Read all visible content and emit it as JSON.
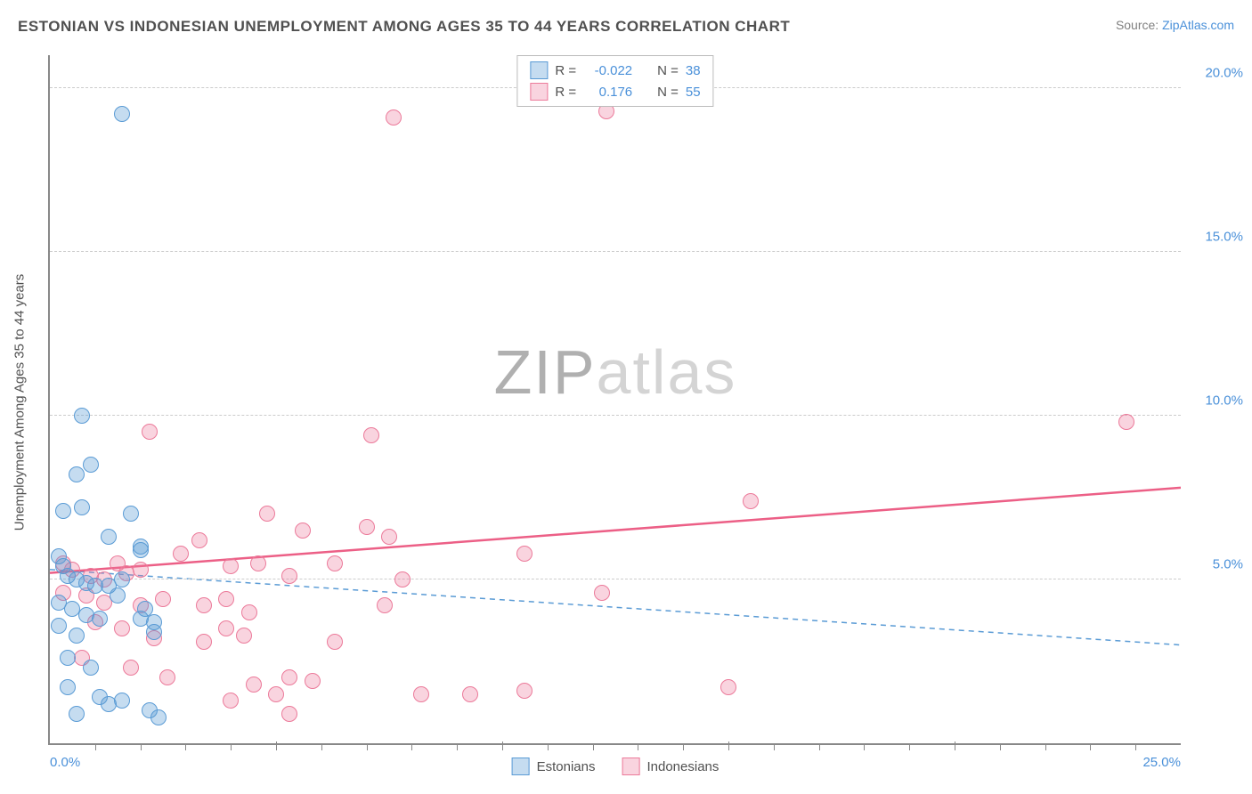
{
  "title": "ESTONIAN VS INDONESIAN UNEMPLOYMENT AMONG AGES 35 TO 44 YEARS CORRELATION CHART",
  "source_label": "Source: ",
  "source_name": "ZipAtlas.com",
  "ylabel": "Unemployment Among Ages 35 to 44 years",
  "watermark_prefix": "ZIP",
  "watermark_suffix": "atlas",
  "watermark_prefix_color": "#b0b0b0",
  "watermark_suffix_color": "#d4d4d4",
  "colors": {
    "blue_border": "#5a9bd5",
    "blue_fill": "rgba(90,155,213,0.35)",
    "pink_border": "#ec7a9a",
    "pink_fill": "rgba(236,122,154,0.32)",
    "ytick_color": "#4a90d9",
    "xtick_left_color": "#4a90d9",
    "xtick_right_color": "#4a90d9",
    "trend_blue": "#5a9bd5",
    "trend_pink": "#ec5f86",
    "legend_text": "#505050",
    "legend_value": "#4a90d9"
  },
  "xlim": [
    0,
    25
  ],
  "ylim": [
    0,
    21
  ],
  "yticks": [
    {
      "v": 5,
      "label": "5.0%"
    },
    {
      "v": 10,
      "label": "10.0%"
    },
    {
      "v": 15,
      "label": "15.0%"
    },
    {
      "v": 20,
      "label": "20.0%"
    }
  ],
  "xticks_major": [
    5,
    10,
    15,
    20
  ],
  "xticks_minor": [
    1,
    2,
    3,
    4,
    6,
    7,
    8,
    9,
    11,
    12,
    13,
    14,
    16,
    17,
    18,
    19,
    21,
    22,
    23,
    24
  ],
  "xticks_labeled": [
    {
      "v": 0,
      "label": "0.0%",
      "align": "left"
    },
    {
      "v": 25,
      "label": "25.0%",
      "align": "right"
    }
  ],
  "legend_top": [
    {
      "series": "blue",
      "r_label": "R =",
      "r_val": "-0.022",
      "n_label": "N =",
      "n_val": "38"
    },
    {
      "series": "pink",
      "r_label": "R =",
      "r_val": "0.176",
      "n_label": "N =",
      "n_val": "55"
    }
  ],
  "legend_bottom": [
    {
      "series": "blue",
      "label": "Estonians"
    },
    {
      "series": "pink",
      "label": "Indonesians"
    }
  ],
  "trend_lines": {
    "blue": {
      "x1": 0,
      "y1": 5.3,
      "x2": 25,
      "y2": 3.0,
      "dashed": true,
      "width": 1.5
    },
    "pink": {
      "x1": 0,
      "y1": 5.2,
      "x2": 25,
      "y2": 7.8,
      "dashed": false,
      "width": 2.5
    }
  },
  "marker_radius": 9,
  "series": {
    "blue": [
      [
        1.6,
        19.2
      ],
      [
        0.7,
        10.0
      ],
      [
        0.9,
        8.5
      ],
      [
        0.6,
        8.2
      ],
      [
        0.3,
        7.1
      ],
      [
        0.7,
        7.2
      ],
      [
        1.8,
        7.0
      ],
      [
        2.0,
        5.9
      ],
      [
        1.3,
        6.3
      ],
      [
        2.0,
        6.0
      ],
      [
        0.2,
        5.7
      ],
      [
        0.3,
        5.4
      ],
      [
        0.4,
        5.1
      ],
      [
        0.6,
        5.0
      ],
      [
        0.8,
        4.9
      ],
      [
        1.0,
        4.8
      ],
      [
        1.3,
        4.8
      ],
      [
        1.6,
        5.0
      ],
      [
        1.5,
        4.5
      ],
      [
        0.2,
        4.3
      ],
      [
        0.5,
        4.1
      ],
      [
        0.8,
        3.9
      ],
      [
        1.1,
        3.8
      ],
      [
        2.0,
        3.8
      ],
      [
        2.1,
        4.1
      ],
      [
        2.3,
        3.7
      ],
      [
        2.3,
        3.4
      ],
      [
        0.2,
        3.6
      ],
      [
        0.6,
        3.3
      ],
      [
        0.4,
        2.6
      ],
      [
        0.9,
        2.3
      ],
      [
        0.4,
        1.7
      ],
      [
        1.1,
        1.4
      ],
      [
        1.3,
        1.2
      ],
      [
        1.6,
        1.3
      ],
      [
        2.2,
        1.0
      ],
      [
        2.4,
        0.8
      ],
      [
        0.6,
        0.9
      ]
    ],
    "pink": [
      [
        7.6,
        19.1
      ],
      [
        12.3,
        19.3
      ],
      [
        2.2,
        9.5
      ],
      [
        7.1,
        9.4
      ],
      [
        23.8,
        9.8
      ],
      [
        15.5,
        7.4
      ],
      [
        3.3,
        6.2
      ],
      [
        4.8,
        7.0
      ],
      [
        5.6,
        6.5
      ],
      [
        7.0,
        6.6
      ],
      [
        7.5,
        6.3
      ],
      [
        10.5,
        5.8
      ],
      [
        4.0,
        5.4
      ],
      [
        4.6,
        5.5
      ],
      [
        5.3,
        5.1
      ],
      [
        6.3,
        5.5
      ],
      [
        7.8,
        5.0
      ],
      [
        2.0,
        5.3
      ],
      [
        2.9,
        5.8
      ],
      [
        12.2,
        4.6
      ],
      [
        0.3,
        5.5
      ],
      [
        0.5,
        5.3
      ],
      [
        0.9,
        5.1
      ],
      [
        1.2,
        5.0
      ],
      [
        1.5,
        5.5
      ],
      [
        1.7,
        5.2
      ],
      [
        0.3,
        4.6
      ],
      [
        0.8,
        4.5
      ],
      [
        1.2,
        4.3
      ],
      [
        2.0,
        4.2
      ],
      [
        2.5,
        4.4
      ],
      [
        3.4,
        4.2
      ],
      [
        3.9,
        4.4
      ],
      [
        4.4,
        4.0
      ],
      [
        7.4,
        4.2
      ],
      [
        1.0,
        3.7
      ],
      [
        1.6,
        3.5
      ],
      [
        2.3,
        3.2
      ],
      [
        3.4,
        3.1
      ],
      [
        3.9,
        3.5
      ],
      [
        4.3,
        3.3
      ],
      [
        6.3,
        3.1
      ],
      [
        0.7,
        2.6
      ],
      [
        1.8,
        2.3
      ],
      [
        2.6,
        2.0
      ],
      [
        4.5,
        1.8
      ],
      [
        5.3,
        2.0
      ],
      [
        5.8,
        1.9
      ],
      [
        8.2,
        1.5
      ],
      [
        9.3,
        1.5
      ],
      [
        10.5,
        1.6
      ],
      [
        15.0,
        1.7
      ],
      [
        4.0,
        1.3
      ],
      [
        5.0,
        1.5
      ],
      [
        5.3,
        0.9
      ]
    ]
  }
}
